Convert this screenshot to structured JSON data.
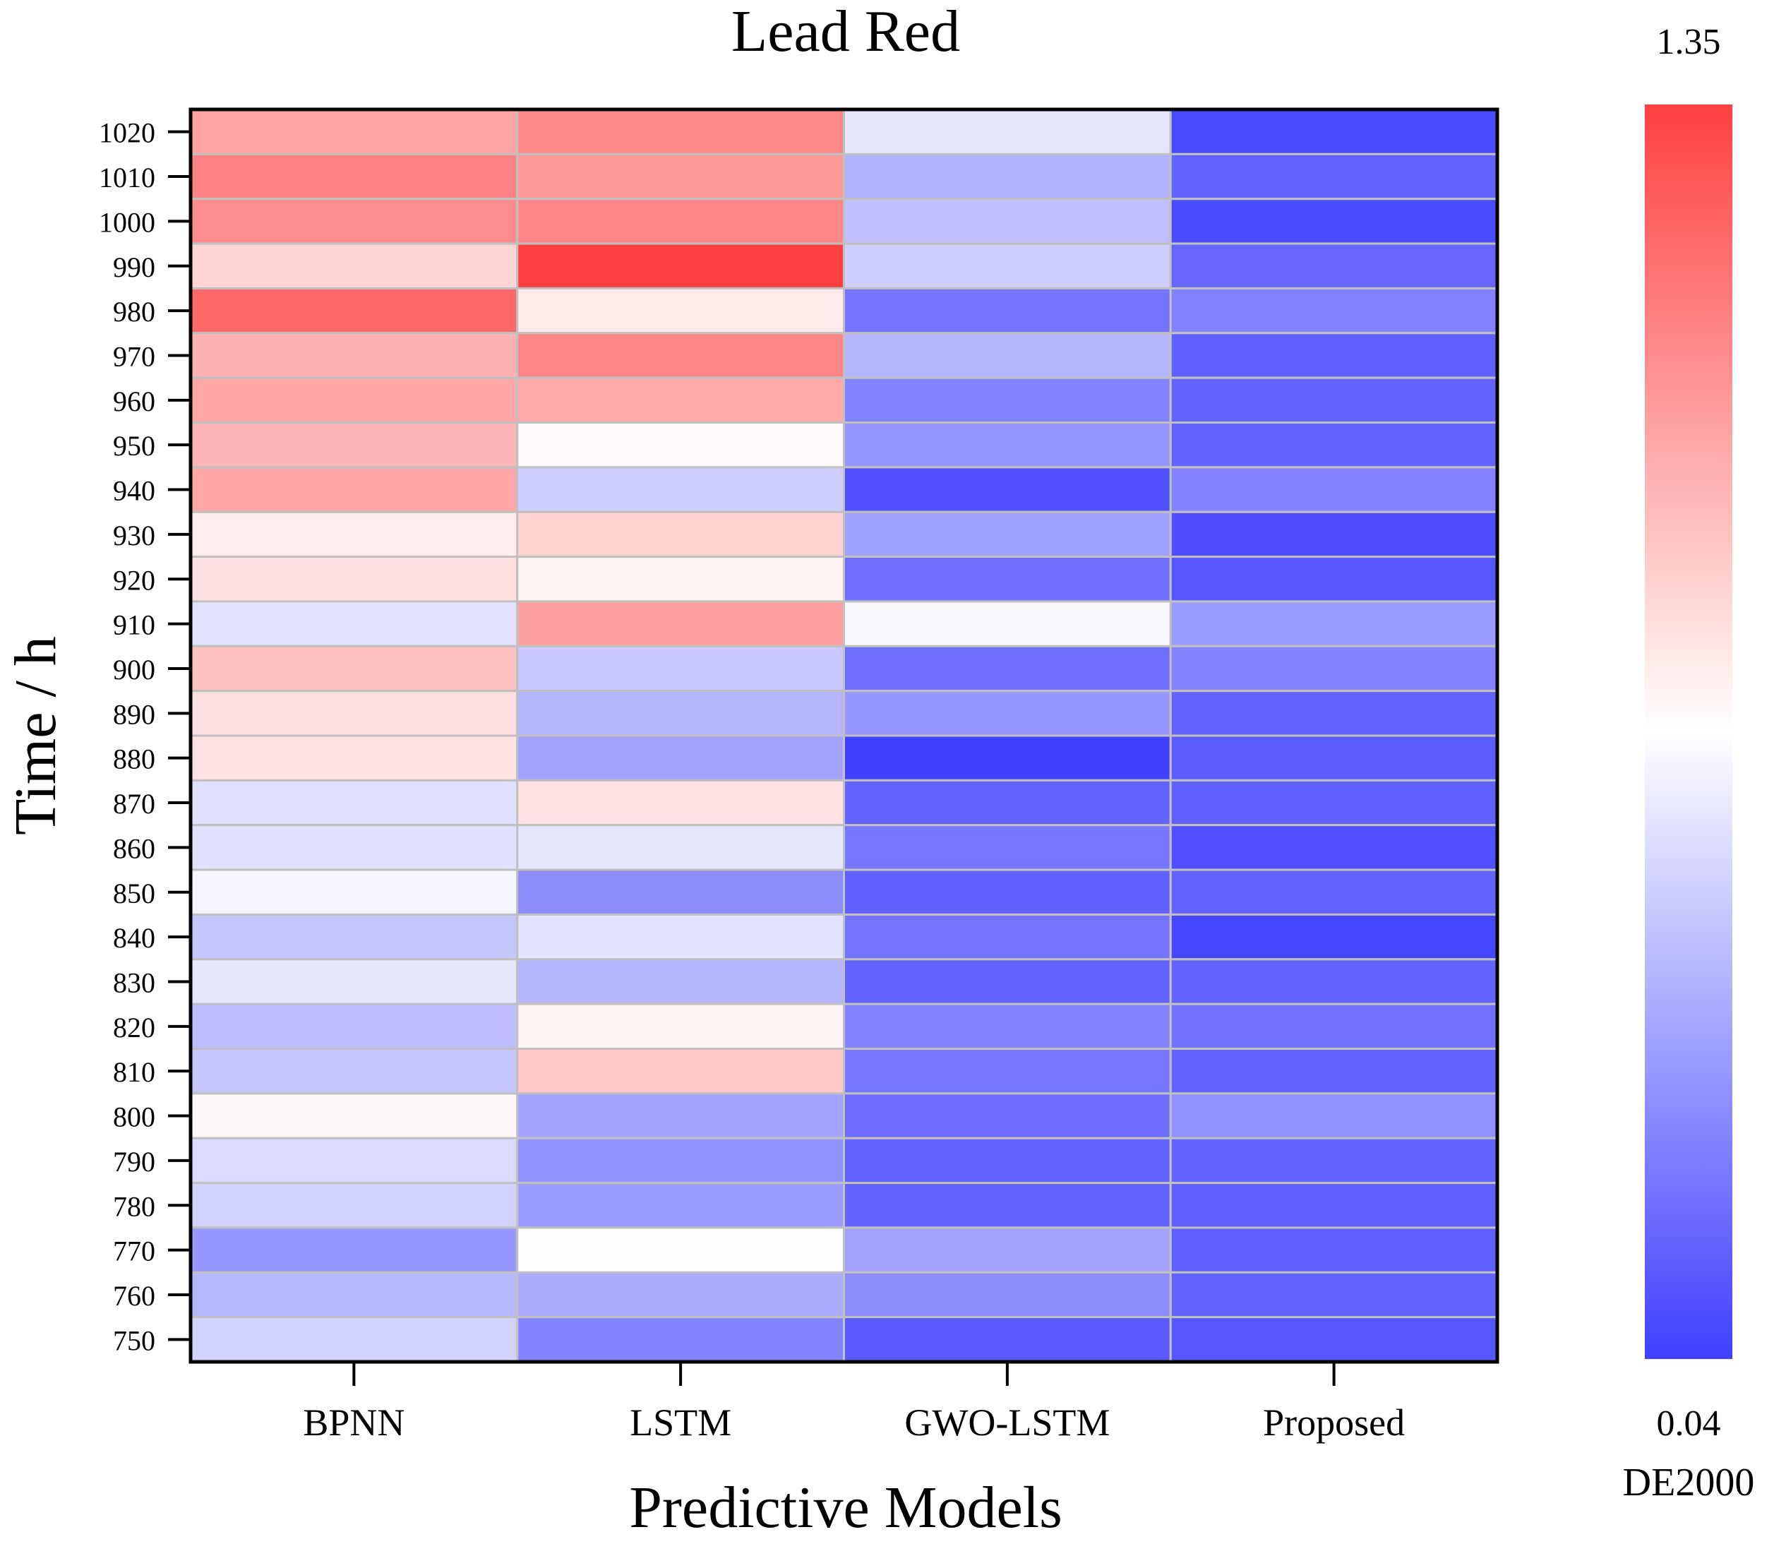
{
  "chart_data": {
    "type": "heatmap",
    "title": "Lead Red",
    "xlabel": "Predictive Models",
    "ylabel": "Time / h",
    "x_categories": [
      "BPNN",
      "LSTM",
      "GWO-LSTM",
      "Proposed"
    ],
    "y_categories": [
      1020,
      1010,
      1000,
      990,
      980,
      970,
      960,
      950,
      940,
      930,
      920,
      910,
      900,
      890,
      880,
      870,
      860,
      850,
      840,
      830,
      820,
      810,
      800,
      790,
      780,
      770,
      760,
      750
    ],
    "values": [
      [
        1.01,
        1.1,
        0.61,
        0.07
      ],
      [
        1.12,
        1.04,
        0.43,
        0.16
      ],
      [
        1.09,
        1.11,
        0.48,
        0.08
      ],
      [
        0.84,
        1.35,
        0.53,
        0.17
      ],
      [
        1.21,
        0.77,
        0.22,
        0.27
      ],
      [
        0.96,
        1.11,
        0.44,
        0.15
      ],
      [
        1.0,
        0.99,
        0.27,
        0.16
      ],
      [
        0.95,
        0.71,
        0.34,
        0.16
      ],
      [
        1.0,
        0.53,
        0.1,
        0.27
      ],
      [
        0.76,
        0.85,
        0.37,
        0.09
      ],
      [
        0.8,
        0.74,
        0.2,
        0.12
      ],
      [
        0.6,
        1.02,
        0.67,
        0.35
      ],
      [
        0.91,
        0.51,
        0.2,
        0.27
      ],
      [
        0.8,
        0.44,
        0.34,
        0.16
      ],
      [
        0.79,
        0.38,
        0.04,
        0.14
      ],
      [
        0.59,
        0.79,
        0.16,
        0.15
      ],
      [
        0.59,
        0.61,
        0.23,
        0.1
      ],
      [
        0.66,
        0.3,
        0.15,
        0.16
      ],
      [
        0.5,
        0.6,
        0.22,
        0.06
      ],
      [
        0.61,
        0.44,
        0.16,
        0.16
      ],
      [
        0.47,
        0.73,
        0.27,
        0.21
      ],
      [
        0.5,
        0.88,
        0.23,
        0.16
      ],
      [
        0.72,
        0.38,
        0.19,
        0.32
      ],
      [
        0.57,
        0.32,
        0.16,
        0.16
      ],
      [
        0.54,
        0.35,
        0.16,
        0.15
      ],
      [
        0.34,
        0.69,
        0.38,
        0.15
      ],
      [
        0.45,
        0.41,
        0.3,
        0.16
      ],
      [
        0.54,
        0.27,
        0.13,
        0.12
      ]
    ],
    "colorbar": {
      "label": "DE2000",
      "min": 0.04,
      "max": 1.35,
      "min_label": "0.04",
      "max_label": "1.35",
      "low_color": "#4040ff",
      "mid_color": "#ffffff",
      "high_color": "#ff4040",
      "mid_fraction": 0.5
    },
    "cell_border_color": "#c0c0c0",
    "frame_color": "#000000"
  }
}
